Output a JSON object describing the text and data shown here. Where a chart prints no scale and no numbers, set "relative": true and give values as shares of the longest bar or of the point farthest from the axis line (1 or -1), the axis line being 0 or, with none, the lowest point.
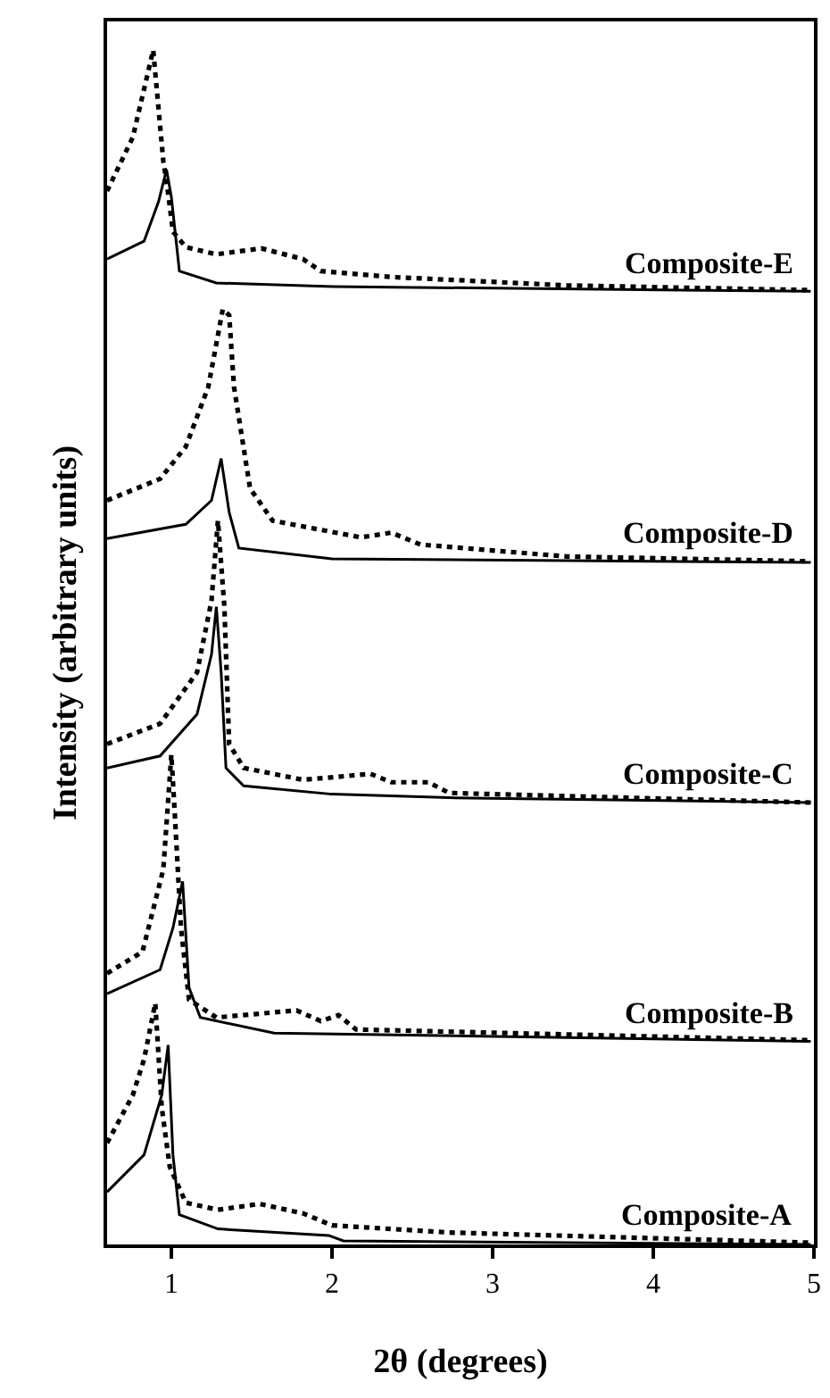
{
  "chart_data": {
    "type": "line",
    "relative": true,
    "xlabel": "2θ (degrees)",
    "ylabel": "Intensity (arbitrary units)",
    "xlim": [
      0.6,
      5
    ],
    "xticks": [
      1,
      2,
      3,
      4,
      5
    ],
    "marker": "none",
    "tick_labels": "x",
    "series": [
      {
        "color": "#000000",
        "line_style": "dotted",
        "x": [
          0.6,
          0.76,
          0.83,
          0.9,
          0.94,
          0.99,
          1.09,
          1.29,
          1.55,
          1.82,
          2.0,
          2.73,
          4.98
        ],
        "values": [
          0.085,
          0.125,
          0.155,
          0.202,
          0.115,
          0.065,
          0.035,
          0.029,
          0.034,
          0.026,
          0.016,
          0.01,
          0.0015
        ]
      },
      {
        "color": "#000000",
        "line_style": "solid",
        "x": [
          0.6,
          0.83,
          0.94,
          0.98,
          1.01,
          1.05,
          1.29,
          1.98,
          2.07,
          4.98
        ],
        "values": [
          0.044,
          0.075,
          0.125,
          0.167,
          0.075,
          0.025,
          0.013,
          0.0075,
          0.003,
          0.0
        ]
      },
      {
        "color": "#000000",
        "line_style": "dotted",
        "x": [
          0.6,
          0.82,
          0.95,
          1.0,
          1.02,
          1.06,
          1.11,
          1.28,
          1.78,
          1.93,
          2.04,
          2.15,
          4.98
        ],
        "values": [
          0.227,
          0.245,
          0.314,
          0.41,
          0.364,
          0.265,
          0.205,
          0.19,
          0.196,
          0.187,
          0.192,
          0.18,
          0.171
        ]
      },
      {
        "color": "#000000",
        "line_style": "solid",
        "x": [
          0.6,
          0.93,
          1.01,
          1.07,
          1.11,
          1.18,
          1.64,
          4.98
        ],
        "values": [
          0.21,
          0.23,
          0.265,
          0.304,
          0.215,
          0.19,
          0.177,
          0.17
        ]
      },
      {
        "color": "#000000",
        "line_style": "dotted",
        "x": [
          0.6,
          0.93,
          1.16,
          1.25,
          1.29,
          1.33,
          1.36,
          1.45,
          1.82,
          2.24,
          2.37,
          2.6,
          2.73,
          4.98
        ],
        "values": [
          0.419,
          0.436,
          0.479,
          0.539,
          0.606,
          0.534,
          0.419,
          0.399,
          0.389,
          0.394,
          0.387,
          0.387,
          0.378,
          0.37
        ]
      },
      {
        "color": "#000000",
        "line_style": "solid",
        "x": [
          0.6,
          0.93,
          1.16,
          1.25,
          1.28,
          1.31,
          1.34,
          1.45,
          2.0,
          2.73,
          4.98
        ],
        "values": [
          0.399,
          0.409,
          0.444,
          0.494,
          0.534,
          0.479,
          0.399,
          0.384,
          0.377,
          0.374,
          0.37
        ]
      },
      {
        "color": "#000000",
        "line_style": "dotted",
        "x": [
          0.6,
          0.93,
          1.09,
          1.23,
          1.32,
          1.36,
          1.39,
          1.49,
          1.63,
          2.18,
          2.37,
          2.55,
          3.46,
          4.98
        ],
        "values": [
          0.623,
          0.641,
          0.668,
          0.718,
          0.783,
          0.778,
          0.718,
          0.633,
          0.606,
          0.592,
          0.596,
          0.586,
          0.576,
          0.572
        ]
      },
      {
        "color": "#000000",
        "line_style": "solid",
        "x": [
          0.6,
          1.09,
          1.25,
          1.31,
          1.36,
          1.42,
          2.0,
          4.98
        ],
        "values": [
          0.591,
          0.603,
          0.623,
          0.658,
          0.613,
          0.583,
          0.574,
          0.571
        ]
      },
      {
        "color": "#000000",
        "line_style": "dotted",
        "x": [
          0.6,
          0.76,
          0.887,
          0.95,
          0.978,
          1.01,
          1.09,
          1.28,
          1.56,
          1.82,
          1.93,
          2.37,
          3.46,
          4.98
        ],
        "values": [
          0.882,
          0.927,
          1.0,
          0.907,
          0.882,
          0.848,
          0.835,
          0.829,
          0.834,
          0.825,
          0.815,
          0.81,
          0.803,
          0.799
        ]
      },
      {
        "color": "#000000",
        "line_style": "solid",
        "x": [
          0.6,
          0.83,
          0.92,
          0.97,
          1.0,
          1.05,
          1.28,
          2.0,
          4.98
        ],
        "values": [
          0.825,
          0.84,
          0.873,
          0.9,
          0.877,
          0.815,
          0.805,
          0.802,
          0.798
        ]
      }
    ],
    "annotations": [
      "Composite-A",
      "Composite-B",
      "Composite-C",
      "Composite-D",
      "Composite-E"
    ]
  }
}
